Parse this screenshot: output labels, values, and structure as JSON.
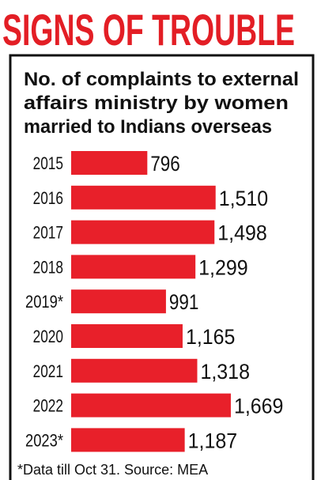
{
  "chart_data": {
    "type": "bar",
    "orientation": "horizontal",
    "title": "SIGNS OF TROUBLE",
    "subtitle": [
      "No. of complaints to external",
      "affairs ministry by women",
      "married to Indians overseas"
    ],
    "categories": [
      "2015",
      "2016",
      "2017",
      "2018",
      "2019*",
      "2020",
      "2021",
      "2022",
      "2023*"
    ],
    "values": [
      796,
      1510,
      1498,
      1299,
      991,
      1165,
      1318,
      1669,
      1187
    ],
    "value_labels": [
      "796",
      "1,510",
      "1,498",
      "1,299",
      "991",
      "1,165",
      "1,318",
      "1,669",
      "1,187"
    ],
    "color": "#e8202a",
    "note": "*Data till Oct 31. Source: MEA"
  }
}
